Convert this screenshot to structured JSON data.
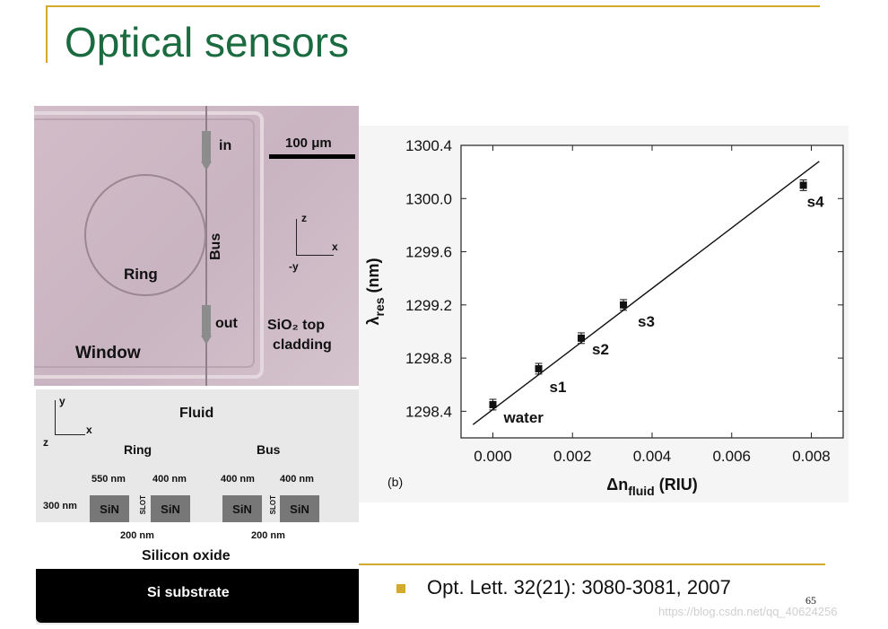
{
  "slide": {
    "title": "Optical sensors",
    "citation": "Opt. Lett. 32(21): 3080-3081, 2007",
    "page_number": "65",
    "watermark": "https://blog.csdn.net/qq_40624256",
    "colors": {
      "title": "#1a6b3f",
      "accent_rule": "#d4aa2a"
    }
  },
  "micrograph": {
    "in_label": "in",
    "out_label": "out",
    "bus_label": "Bus",
    "ring_label": "Ring",
    "window_label": "Window",
    "scale_label": "100 μm",
    "cladding_line1": "SiO₂ top",
    "cladding_line2": "cladding",
    "axis_z": "z",
    "axis_x": "x",
    "axis_neg_y": "-y"
  },
  "cross_section": {
    "fluid_label": "Fluid",
    "ring_label": "Ring",
    "bus_label": "Bus",
    "dim_550": "550 nm",
    "dim_400a": "400 nm",
    "dim_400b": "400 nm",
    "dim_400c": "400 nm",
    "dim_300": "300 nm",
    "sin_label": "SiN",
    "slot_label": "SLOT",
    "gap_ring": "200 nm",
    "gap_bus": "200 nm",
    "oxide_label": "Silicon oxide",
    "substrate_label": "Si substrate",
    "axis_y": "y",
    "axis_x": "x",
    "axis_z": "z"
  },
  "chart_data": {
    "type": "scatter",
    "panel_label": "(b)",
    "xlabel": "Δn",
    "xlabel_sub": "fluid",
    "xlabel_unit": "(RIU)",
    "ylabel": "λ",
    "ylabel_sub": "res",
    "ylabel_unit": "(nm)",
    "xlim": [
      -0.0008,
      0.0088
    ],
    "ylim": [
      1298.2,
      1300.4
    ],
    "xticks": [
      "0.000",
      "0.002",
      "0.004",
      "0.006",
      "0.008"
    ],
    "xtick_values": [
      0.0,
      0.002,
      0.004,
      0.006,
      0.008
    ],
    "yticks": [
      "1298.4",
      "1298.8",
      "1299.2",
      "1299.6",
      "1300.0",
      "1300.4"
    ],
    "ytick_values": [
      1298.4,
      1298.8,
      1299.2,
      1299.6,
      1300.0,
      1300.4
    ],
    "points": [
      {
        "label": "water",
        "x": 0.0,
        "y": 1298.45,
        "err": 0.04
      },
      {
        "label": "s1",
        "x": 0.00115,
        "y": 1298.72,
        "err": 0.04
      },
      {
        "label": "s2",
        "x": 0.00222,
        "y": 1298.95,
        "err": 0.04
      },
      {
        "label": "s3",
        "x": 0.00328,
        "y": 1299.2,
        "err": 0.04
      },
      {
        "label": "s4",
        "x": 0.0078,
        "y": 1300.1,
        "err": 0.04
      }
    ],
    "fit_line": {
      "x": [
        -0.0005,
        0.0082
      ],
      "y": [
        1298.3,
        1300.28
      ]
    }
  }
}
